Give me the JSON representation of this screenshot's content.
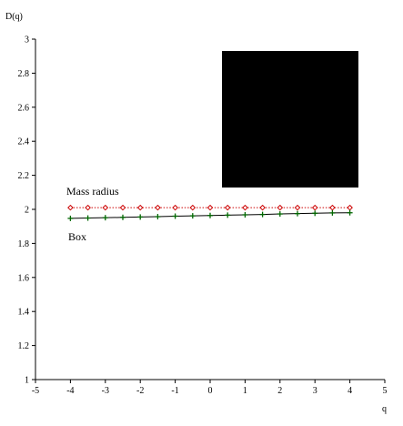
{
  "chart_data": {
    "type": "line",
    "ylabel": "D(q)",
    "xlabel": "q",
    "xlim": [
      -5,
      5
    ],
    "ylim": [
      1,
      3
    ],
    "xticks": [
      -5,
      -4,
      -3,
      -2,
      -1,
      0,
      1,
      2,
      3,
      4,
      5
    ],
    "yticks": [
      1,
      1.2,
      1.4,
      1.6,
      1.8,
      2,
      2.2,
      2.4,
      2.6,
      2.8,
      3
    ],
    "xtick_labels": [
      "-5",
      "-4",
      "-3",
      "-2",
      "-1",
      "0",
      "1",
      "2",
      "3",
      "4",
      "5"
    ],
    "ytick_labels": [
      "1",
      "1.2",
      "1.4",
      "1.6",
      "1.8",
      "2",
      "2.2",
      "2.4",
      "2.6",
      "2.8",
      "3"
    ],
    "grid": false,
    "series": [
      {
        "name": "Mass radius",
        "color": "#cc0000",
        "marker_color": "#cc0000",
        "line_style": "dotted",
        "marker": "diamond",
        "x": [
          -4,
          -3.5,
          -3,
          -2.5,
          -2,
          -1.5,
          -1,
          -0.5,
          0,
          0.5,
          1,
          1.5,
          2,
          2.5,
          3,
          3.5,
          4
        ],
        "y": [
          2.01,
          2.01,
          2.01,
          2.01,
          2.01,
          2.01,
          2.01,
          2.01,
          2.01,
          2.01,
          2.01,
          2.01,
          2.01,
          2.01,
          2.01,
          2.01,
          2.01
        ]
      },
      {
        "name": "Box",
        "color": "#000000",
        "marker_color": "#006600",
        "line_style": "solid",
        "marker": "plus",
        "x": [
          -4,
          -3.5,
          -3,
          -2.5,
          -2,
          -1.5,
          -1,
          -0.5,
          0,
          0.5,
          1,
          1.5,
          2,
          2.5,
          3,
          3.5,
          4
        ],
        "y": [
          1.947,
          1.949,
          1.951,
          1.953,
          1.955,
          1.957,
          1.96,
          1.962,
          1.964,
          1.966,
          1.968,
          1.97,
          1.973,
          1.975,
          1.977,
          1.979,
          1.98
        ]
      }
    ],
    "annotations": [
      "Mass radius",
      "Box"
    ],
    "inset": {
      "color": "#000000"
    }
  }
}
